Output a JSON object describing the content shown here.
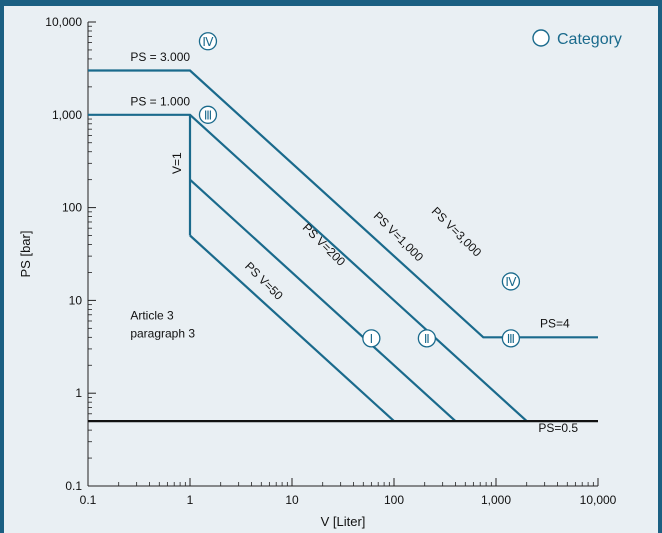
{
  "chart_data": {
    "type": "line",
    "xlabel": "V [Liter]",
    "ylabel": "PS [bar]",
    "x_scale": "log",
    "y_scale": "log",
    "xlim": [
      0.1,
      10000
    ],
    "ylim": [
      0.1,
      10000
    ],
    "x_ticks": [
      {
        "value": 0.1,
        "label": "0.1"
      },
      {
        "value": 1,
        "label": "1"
      },
      {
        "value": 10,
        "label": "10"
      },
      {
        "value": 100,
        "label": "100"
      },
      {
        "value": 1000,
        "label": "1,000"
      },
      {
        "value": 10000,
        "label": "10,000"
      }
    ],
    "y_ticks": [
      {
        "value": 0.1,
        "label": "0.1"
      },
      {
        "value": 1,
        "label": "1"
      },
      {
        "value": 10,
        "label": "10"
      },
      {
        "value": 100,
        "label": "100"
      },
      {
        "value": 1000,
        "label": "1,000"
      },
      {
        "value": 10000,
        "label": "10,000"
      }
    ],
    "grid": false,
    "legend": {
      "symbol": "circle",
      "label": "Category",
      "position": "top-right"
    },
    "series": [
      {
        "key": "ps3000",
        "color": "#1a6a8c",
        "points": [
          [
            0.1,
            3000
          ],
          [
            1,
            3000
          ],
          [
            750,
            4
          ],
          [
            10000,
            4
          ]
        ]
      },
      {
        "key": "ps1000",
        "color": "#1a6a8c",
        "points": [
          [
            0.1,
            1000
          ],
          [
            1,
            1000
          ],
          [
            2000,
            0.5
          ]
        ]
      },
      {
        "key": "ps200",
        "color": "#1a6a8c",
        "points": [
          [
            1,
            200
          ],
          [
            400,
            0.5
          ]
        ]
      },
      {
        "key": "ps50",
        "color": "#1a6a8c",
        "points": [
          [
            1,
            50
          ],
          [
            100,
            0.5
          ]
        ]
      },
      {
        "key": "v1",
        "color": "#1a6a8c",
        "points": [
          [
            1,
            50
          ],
          [
            1,
            1000
          ]
        ]
      },
      {
        "key": "ps05",
        "color": "#111111",
        "points": [
          [
            0.1,
            0.5
          ],
          [
            10000,
            0.5
          ]
        ]
      }
    ],
    "line_labels": [
      {
        "text": "PS = 3.000",
        "x": 0.26,
        "y": 3800,
        "angle": 0
      },
      {
        "text": "PS = 1.000",
        "x": 0.26,
        "y": 1260,
        "angle": 0
      },
      {
        "text": "V=1",
        "x": 0.82,
        "y": 230,
        "angle": -90
      },
      {
        "text": "PS V=50",
        "x": 3.4,
        "y": 23,
        "angle": 45
      },
      {
        "text": "PS V=200",
        "x": 12.5,
        "y": 60,
        "angle": 45
      },
      {
        "text": "PS V=1,000",
        "x": 62,
        "y": 80,
        "angle": 45
      },
      {
        "text": "PS V=3,000",
        "x": 230,
        "y": 90,
        "angle": 45
      },
      {
        "text": "PS=4",
        "x": 2700,
        "y": 5.1,
        "angle": 0
      },
      {
        "text": "PS=0.5",
        "x": 2600,
        "y": 0.38,
        "angle": 0
      }
    ],
    "annotations": [
      {
        "lines": [
          "Article 3",
          "paragraph 3"
        ],
        "x": 0.26,
        "y": 6.2
      }
    ],
    "category_markers": [
      {
        "label": "Ⅳ",
        "x": 1.5,
        "y": 6200
      },
      {
        "label": "Ⅲ",
        "x": 1.5,
        "y": 1000
      },
      {
        "label": "Ⅳ",
        "x": 1400,
        "y": 16
      },
      {
        "label": "Ⅲ",
        "x": 1400,
        "y": 3.9
      },
      {
        "label": "Ⅰ",
        "x": 60,
        "y": 3.9
      },
      {
        "label": "Ⅱ",
        "x": 210,
        "y": 3.9
      }
    ]
  }
}
